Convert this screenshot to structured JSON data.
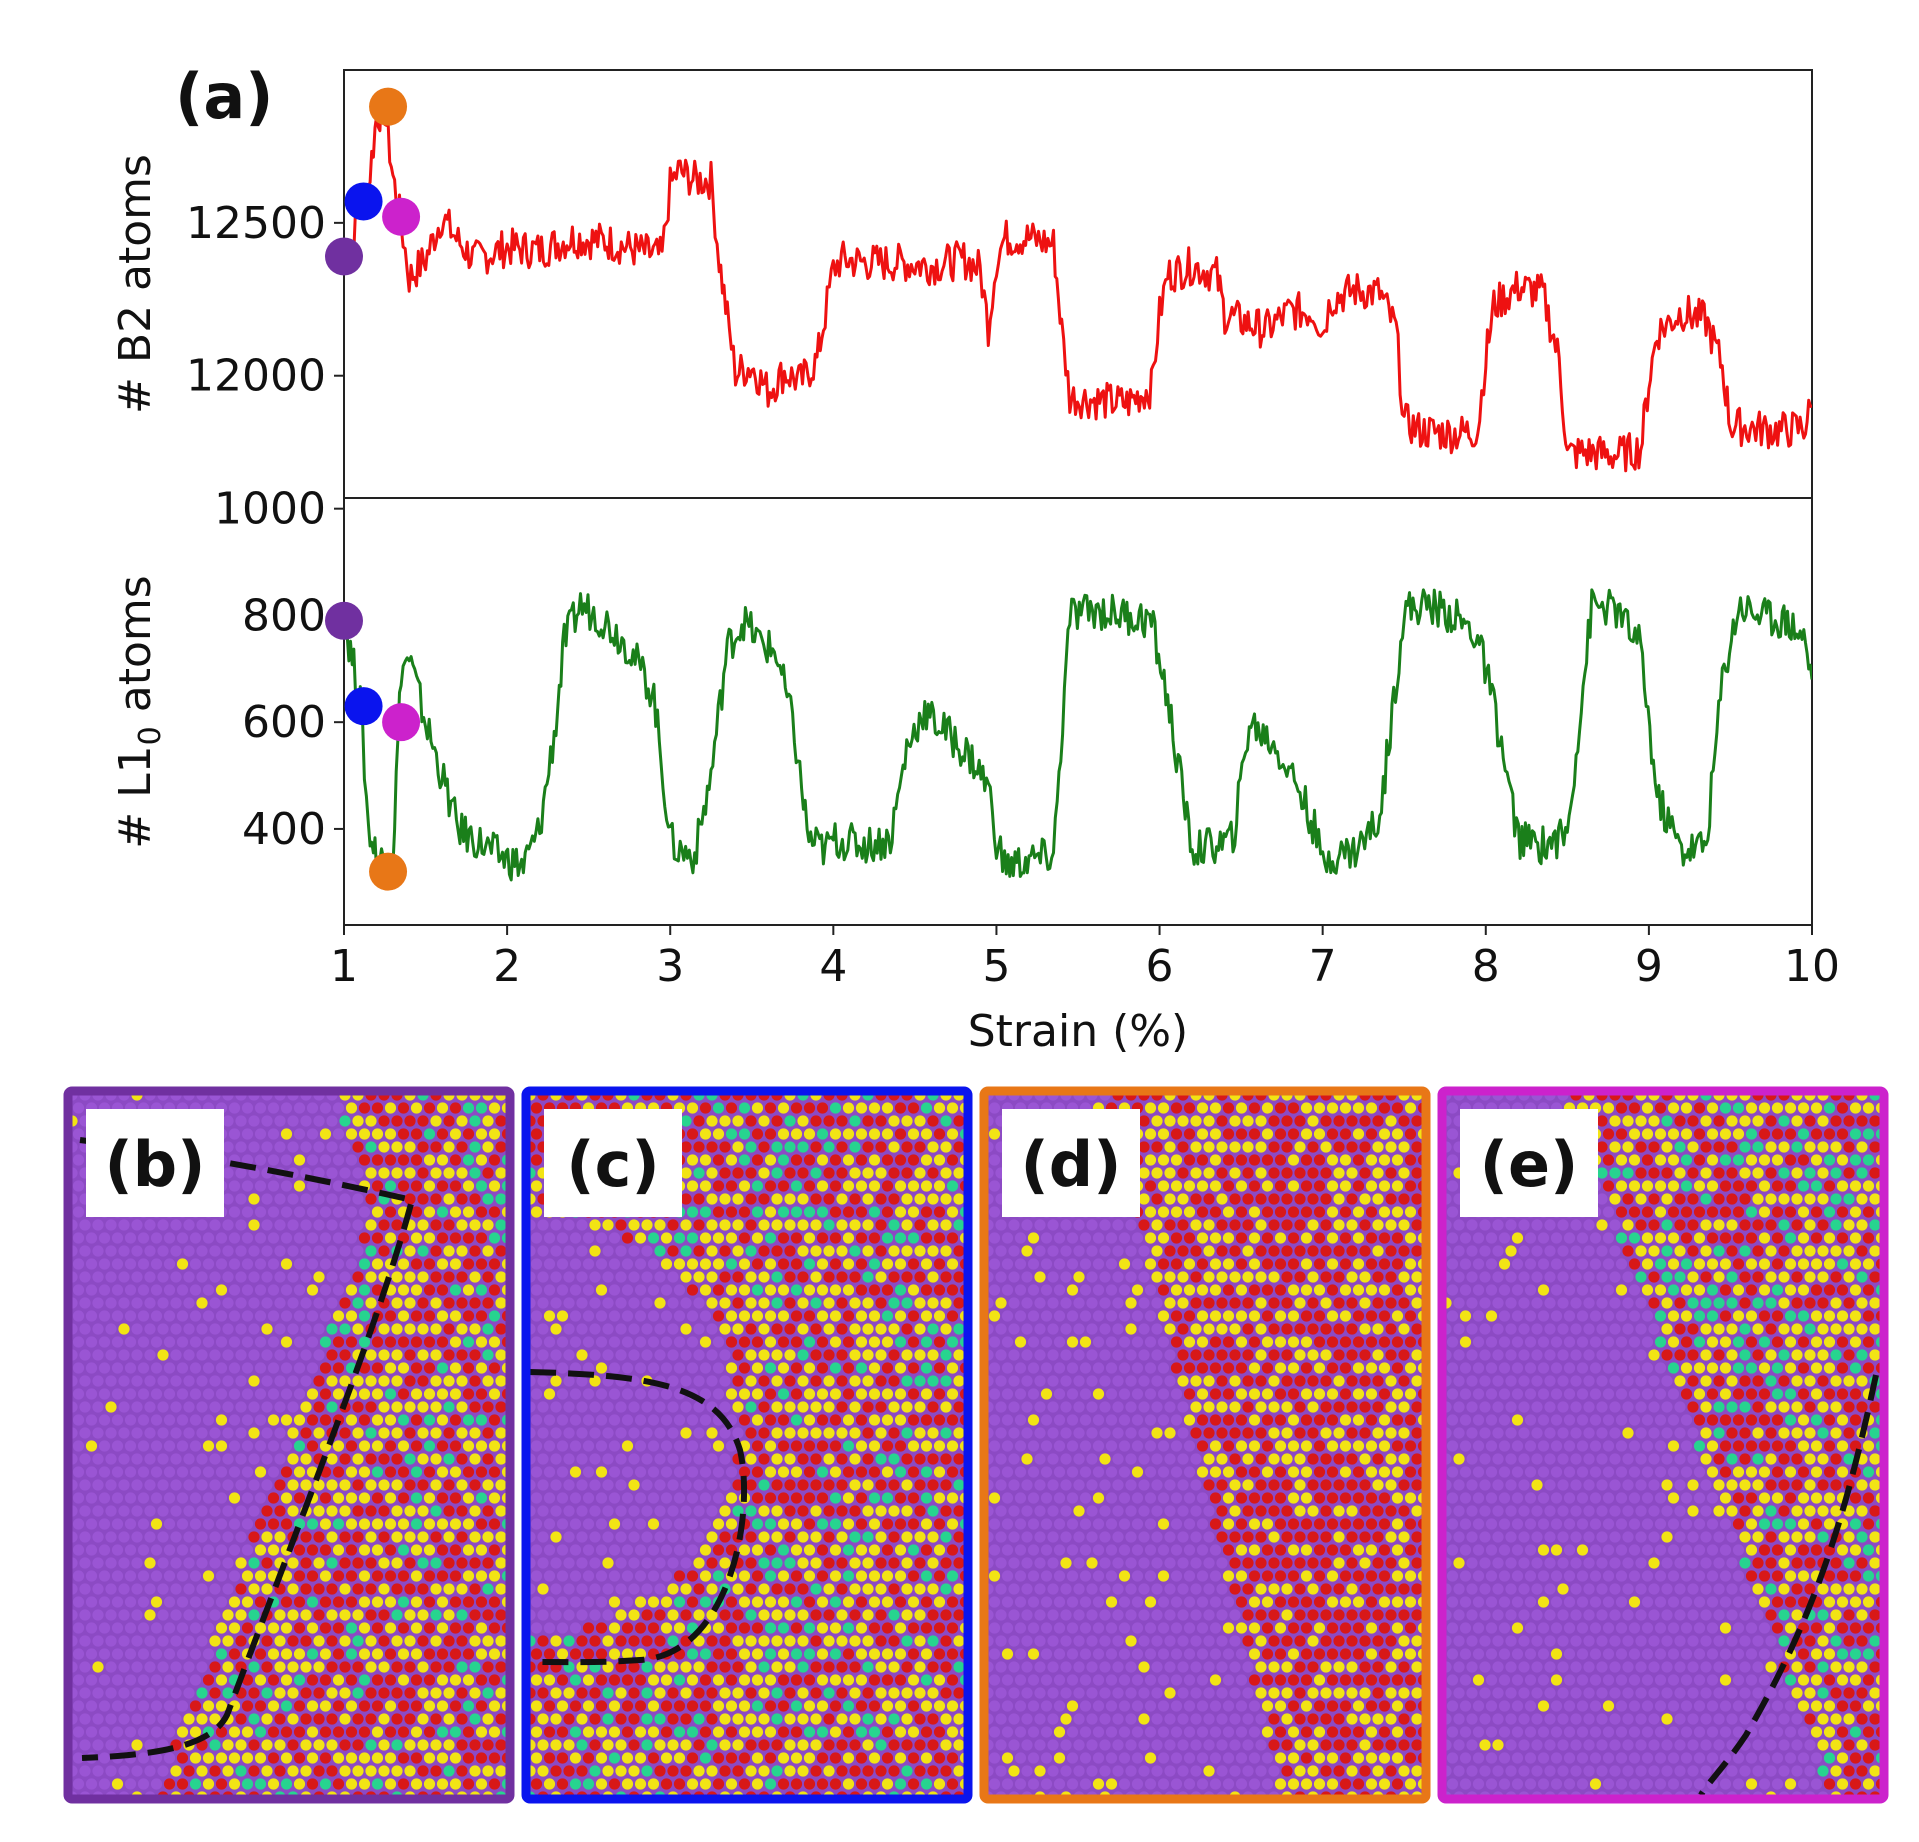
{
  "panel_labels": [
    "(a)",
    "(b)",
    "(c)",
    "(d)",
    "(e)"
  ],
  "colors": {
    "b2_line": "#ee1111",
    "l10_line": "#1a7f1a",
    "marker_b": "#7030a0",
    "marker_c": "#0a14ee",
    "marker_d": "#e87717",
    "marker_e": "#cc22cc",
    "atom_purple": "#9a55d4",
    "atom_red": "#d81818",
    "atom_yellow": "#f2e414",
    "atom_green": "#27d48f",
    "atom_bg_purple": "#8c4ac4",
    "atom_bg_orange": "#d36a20"
  },
  "chart_data": [
    {
      "type": "line",
      "panel": "(a) top",
      "title": "",
      "xlabel": "",
      "ylabel": "# B2 atoms",
      "xlim": [
        1,
        10
      ],
      "ylim": [
        11600,
        13000
      ],
      "yticks": [
        12000,
        12500
      ],
      "ytick_labels": [
        "12000",
        "12500"
      ],
      "series": [
        {
          "name": "B2",
          "color": "#ee1111",
          "x": [
            1.0,
            1.05,
            1.1,
            1.15,
            1.2,
            1.25,
            1.3,
            1.35,
            1.4,
            1.5,
            1.6,
            1.7,
            1.8,
            2.0,
            2.2,
            2.4,
            2.6,
            2.8,
            2.95,
            3.0,
            3.05,
            3.15,
            3.25,
            3.3,
            3.35,
            3.4,
            3.5,
            3.6,
            3.7,
            3.8,
            3.9,
            3.95,
            4.0,
            4.05,
            4.2,
            4.4,
            4.6,
            4.8,
            4.9,
            4.95,
            5.0,
            5.05,
            5.2,
            5.35,
            5.4,
            5.45,
            5.6,
            5.8,
            5.95,
            6.0,
            6.05,
            6.2,
            6.35,
            6.4,
            6.5,
            6.65,
            6.8,
            6.95,
            7.0,
            7.05,
            7.2,
            7.35,
            7.45,
            7.5,
            7.6,
            7.8,
            7.95,
            8.0,
            8.05,
            8.2,
            8.35,
            8.45,
            8.5,
            8.6,
            8.8,
            8.95,
            9.0,
            9.05,
            9.2,
            9.35,
            9.45,
            9.5,
            9.6,
            9.8,
            9.95,
            10.0
          ],
          "y": [
            12380,
            12430,
            12570,
            12620,
            12850,
            12870,
            12650,
            12500,
            12320,
            12380,
            12520,
            12440,
            12380,
            12420,
            12410,
            12450,
            12440,
            12410,
            12390,
            12620,
            12670,
            12640,
            12640,
            12380,
            12190,
            12010,
            12030,
            11950,
            12010,
            11980,
            12050,
            12200,
            12350,
            12380,
            12370,
            12370,
            12360,
            12380,
            12350,
            12160,
            12380,
            12450,
            12450,
            12430,
            12150,
            11930,
            11920,
            11910,
            11960,
            12200,
            12330,
            12360,
            12330,
            12200,
            12180,
            12150,
            12210,
            12210,
            12140,
            12250,
            12280,
            12270,
            12150,
            11850,
            11820,
            11810,
            11820,
            12060,
            12230,
            12290,
            12270,
            12050,
            11740,
            11750,
            11740,
            11760,
            11980,
            12140,
            12210,
            12180,
            12030,
            11840,
            11830,
            11820,
            11830,
            11900
          ]
        }
      ],
      "markers": [
        {
          "name": "b",
          "x": 1.0,
          "y": 12390,
          "color": "#7030a0"
        },
        {
          "name": "c",
          "x": 1.12,
          "y": 12570,
          "color": "#0a14ee"
        },
        {
          "name": "d",
          "x": 1.27,
          "y": 12880,
          "color": "#e87717"
        },
        {
          "name": "e",
          "x": 1.35,
          "y": 12520,
          "color": "#cc22cc"
        }
      ]
    },
    {
      "type": "line",
      "panel": "(a) bottom",
      "title": "",
      "xlabel": "Strain (%)",
      "ylabel_main": "# L1",
      "ylabel_sub": "0",
      "ylabel_tail": " atoms",
      "xlim": [
        1,
        10
      ],
      "ylim": [
        220,
        1020
      ],
      "yticks": [
        400,
        600,
        800,
        1000
      ],
      "ytick_labels": [
        "400",
        "600",
        "800",
        "1000"
      ],
      "xticks": [
        1,
        2,
        3,
        4,
        5,
        6,
        7,
        8,
        9,
        10
      ],
      "xtick_labels": [
        "1",
        "2",
        "3",
        "4",
        "5",
        "6",
        "7",
        "8",
        "9",
        "10"
      ],
      "series": [
        {
          "name": "L10",
          "color": "#1a7f1a",
          "x": [
            1.0,
            1.05,
            1.1,
            1.15,
            1.2,
            1.25,
            1.3,
            1.35,
            1.4,
            1.5,
            1.6,
            1.7,
            1.8,
            1.95,
            2.1,
            2.2,
            2.3,
            2.35,
            2.45,
            2.6,
            2.75,
            2.9,
            3.0,
            3.05,
            3.15,
            3.25,
            3.35,
            3.45,
            3.55,
            3.65,
            3.75,
            3.85,
            3.95,
            4.0,
            4.2,
            4.35,
            4.45,
            4.55,
            4.7,
            4.85,
            4.95,
            5.0,
            5.05,
            5.2,
            5.35,
            5.45,
            5.6,
            5.8,
            5.95,
            6.05,
            6.2,
            6.35,
            6.45,
            6.55,
            6.7,
            6.85,
            6.95,
            7.0,
            7.05,
            7.2,
            7.35,
            7.5,
            7.65,
            7.8,
            7.95,
            8.05,
            8.2,
            8.35,
            8.5,
            8.65,
            8.8,
            8.95,
            9.05,
            9.2,
            9.35,
            9.45,
            9.55,
            9.7,
            9.85,
            9.95,
            10.0
          ],
          "y": [
            790,
            720,
            640,
            400,
            350,
            340,
            350,
            700,
            720,
            600,
            500,
            400,
            380,
            350,
            330,
            400,
            600,
            750,
            820,
            790,
            740,
            650,
            380,
            360,
            350,
            500,
            740,
            790,
            750,
            730,
            600,
            380,
            360,
            380,
            370,
            380,
            550,
            620,
            580,
            530,
            480,
            380,
            330,
            340,
            350,
            800,
            810,
            800,
            790,
            640,
            360,
            370,
            380,
            600,
            560,
            480,
            400,
            330,
            350,
            360,
            420,
            810,
            820,
            800,
            760,
            630,
            380,
            370,
            390,
            820,
            810,
            740,
            460,
            360,
            370,
            680,
            820,
            800,
            790,
            760,
            680
          ]
        }
      ],
      "markers": [
        {
          "name": "b",
          "x": 1.0,
          "y": 790,
          "color": "#7030a0"
        },
        {
          "name": "c",
          "x": 1.12,
          "y": 630,
          "color": "#0a14ee"
        },
        {
          "name": "d",
          "x": 1.27,
          "y": 320,
          "color": "#e87717"
        },
        {
          "name": "e",
          "x": 1.35,
          "y": 600,
          "color": "#cc22cc"
        }
      ]
    }
  ],
  "snapshots": [
    {
      "label": "(b)",
      "frame_color": "#7030a0",
      "interface": "s-curve"
    },
    {
      "label": "(c)",
      "frame_color": "#0a14ee",
      "interface": "u-curve"
    },
    {
      "label": "(d)",
      "frame_color": "#e87717",
      "interface": "none"
    },
    {
      "label": "(e)",
      "frame_color": "#cc22cc",
      "interface": "diagonal"
    }
  ]
}
